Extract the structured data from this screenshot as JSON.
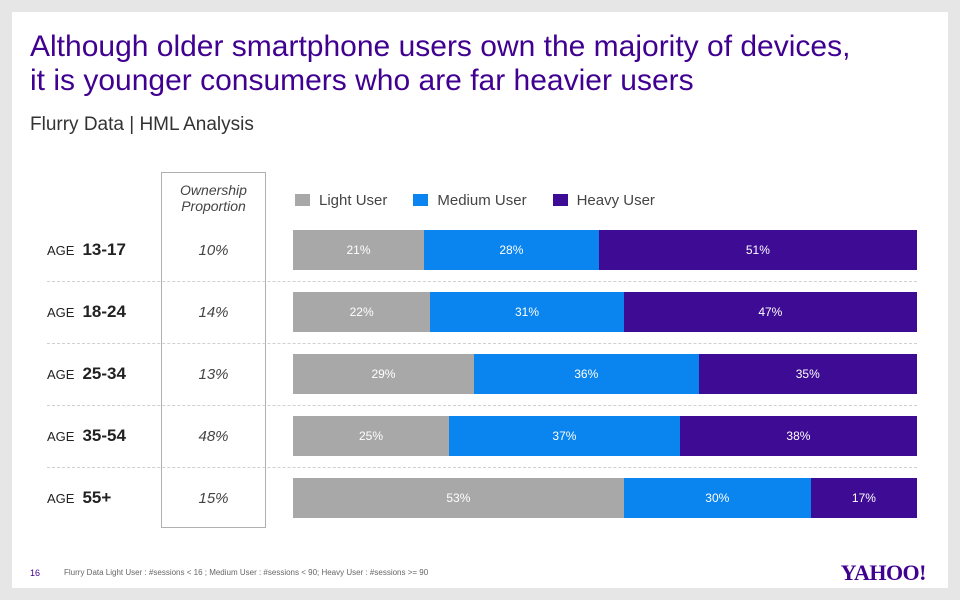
{
  "slide": {
    "title_line1": "Although older smartphone users own the majority of devices,",
    "title_line2": "it is younger consumers who are far heavier users",
    "subtitle": "Flurry Data | HML Analysis",
    "ownership_header_line1": "Ownership",
    "ownership_header_line2": "Proportion",
    "page_number": "16",
    "footnote": "Flurry Data Light User : #sessions < 16 ; Medium User : #sessions < 90; Heavy User : #sessions >= 90",
    "logo": "YAHOO!"
  },
  "colors": {
    "light": "#a8a8a8",
    "medium": "#0a84ee",
    "heavy": "#3e0b94"
  },
  "chart_data": {
    "type": "bar",
    "orientation": "horizontal",
    "stacked": true,
    "percent": true,
    "categories": [
      "13-17",
      "18-24",
      "25-34",
      "35-54",
      "55+"
    ],
    "category_prefix": "AGE",
    "ownership_proportion": [
      "10%",
      "14%",
      "13%",
      "48%",
      "15%"
    ],
    "series": [
      {
        "name": "Light User",
        "values": [
          21,
          22,
          29,
          25,
          53
        ]
      },
      {
        "name": "Medium User",
        "values": [
          28,
          31,
          36,
          37,
          30
        ]
      },
      {
        "name": "Heavy User",
        "values": [
          51,
          47,
          35,
          38,
          17
        ]
      }
    ],
    "legend_position": "top"
  }
}
